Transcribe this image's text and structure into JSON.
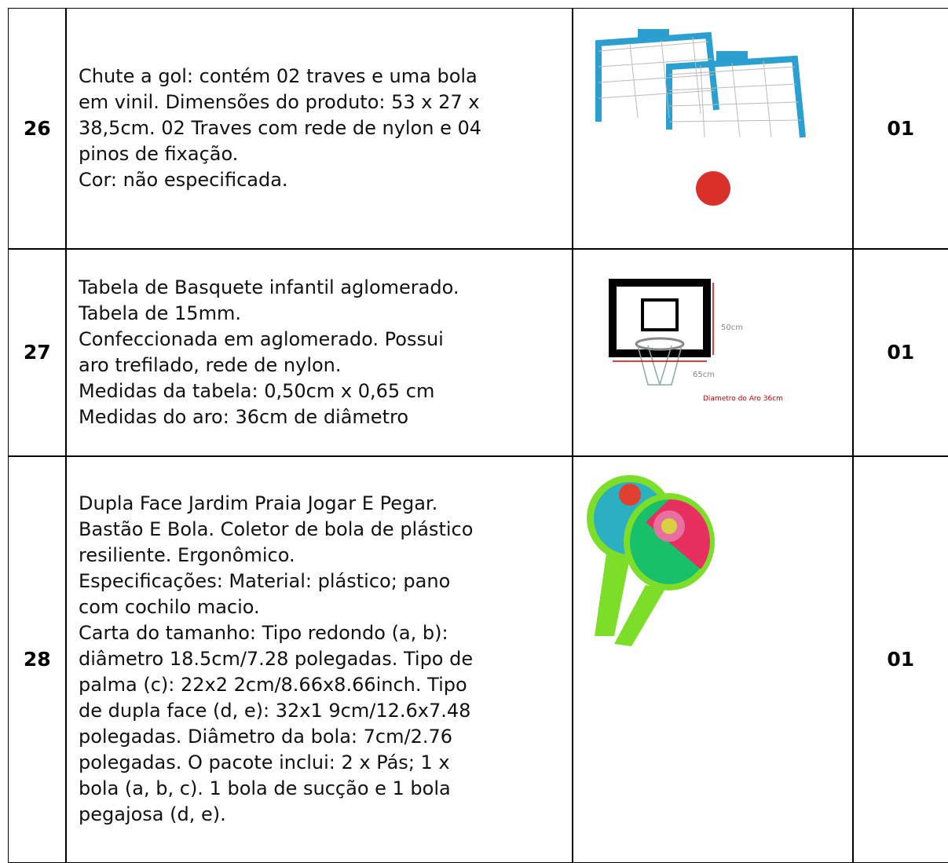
{
  "table": {
    "rows": [
      {
        "number": "26",
        "description": [
          "Chute a gol: contém 02 traves e uma bola",
          "em vinil. Dimensões do produto: 53 x 27 x",
          "38,5cm. 02 Traves com rede de nylon e 04",
          "pinos de fixação.",
          "Cor: não especificada."
        ],
        "quantity": "01"
      },
      {
        "number": "27",
        "description": [
          "Tabela de Basquete infantil aglomerado.",
          "Tabela de 15mm.",
          "Confeccionada em aglomerado. Possui",
          "aro trefilado, rede de nylon.",
          "Medidas da tabela: 0,50cm x 0,65 cm",
          "Medidas do aro: 36cm de diâmetro"
        ],
        "quantity": "01",
        "image_labels": [
          "50cm",
          "65cm",
          "Diametro do Aro 36cm"
        ]
      },
      {
        "number": "28",
        "description": [
          "Dupla Face Jardim Praia Jogar E Pegar.",
          "Bastão E Bola. Coletor de bola de plástico",
          "resiliente. Ergonômico.",
          "Especificações: Material: plástico; pano",
          "com cochilo macio.",
          "Carta do tamanho: Tipo redondo (a, b):",
          "diâmetro 18.5cm/7.28 polegadas. Tipo de",
          "palma (c): 22x2 2cm/8.66x8.66inch. Tipo",
          "de dupla face (d, e): 32x1 9cm/12.6x7.48",
          "polegadas. Diâmetro da bola: 7cm/2.76",
          "polegadas. O pacote inclui: 2 x Pás; 1 x",
          "bola (a, b, c). 1 bola de sucção e 1 bola",
          "pegajosa (d, e)."
        ],
        "quantity": "01"
      }
    ]
  }
}
